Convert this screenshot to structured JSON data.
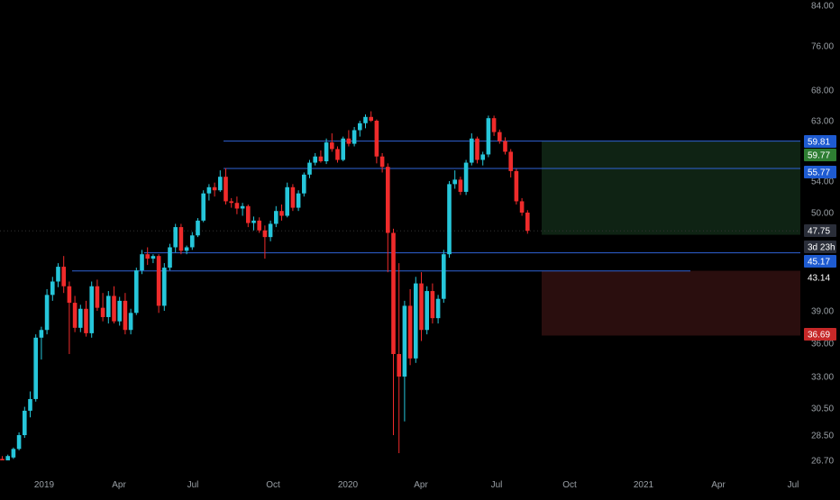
{
  "colors": {
    "background": "#000000",
    "up": "#26c6da",
    "down": "#ef2b2b",
    "hline": "#2f63d6",
    "target_zone": "#0f2314",
    "stop_zone": "#2a0e0e",
    "axis_text": "#9aa0a6",
    "badge_blue": "#1e5bd1",
    "badge_green": "#2e7d32",
    "badge_red": "#c62828",
    "badge_gray": "#2a2e39"
  },
  "price_axis": {
    "ticks": [
      "84.00",
      "76.00",
      "68.00",
      "63.00",
      "54.00",
      "50.00",
      "39.00",
      "36.00",
      "33.00",
      "30.50",
      "28.50",
      "26.70"
    ],
    "labels": [
      {
        "text": "59.81",
        "style": "blue"
      },
      {
        "text": "59.77",
        "style": "green"
      },
      {
        "text": "55.77",
        "style": "blue"
      },
      {
        "text": "47.75",
        "style": "gray"
      },
      {
        "text": "3d 23h",
        "style": "gray"
      },
      {
        "text": "45.17",
        "style": "blue"
      },
      {
        "text": "43.14",
        "style": "plain"
      },
      {
        "text": "36.69",
        "style": "red"
      }
    ]
  },
  "time_axis": {
    "ticks": [
      "2019",
      "Apr",
      "Jul",
      "Oct",
      "2020",
      "Apr",
      "Jul",
      "Oct",
      "2021",
      "Apr",
      "Jul"
    ]
  },
  "chart_data": {
    "type": "candlestick",
    "scale": "log",
    "ylim": [
      26.0,
      84.0
    ],
    "x_unit": "weeks",
    "horizontal_lines": [
      59.81,
      55.77,
      45.17,
      43.14
    ],
    "position": {
      "entry": 45.17,
      "target": 59.77,
      "stop": 36.69
    },
    "candles": [
      [
        26.8,
        27.0,
        26.5,
        26.6
      ],
      [
        26.6,
        27.1,
        26.5,
        27.0
      ],
      [
        26.9,
        27.6,
        26.8,
        27.5
      ],
      [
        27.5,
        28.7,
        27.4,
        28.5
      ],
      [
        28.5,
        30.6,
        28.3,
        30.3
      ],
      [
        30.3,
        31.8,
        29.8,
        31.2
      ],
      [
        31.2,
        36.8,
        31.0,
        36.5
      ],
      [
        36.5,
        37.5,
        34.5,
        37.2
      ],
      [
        37.2,
        41.2,
        36.8,
        40.6
      ],
      [
        40.6,
        42.5,
        40.0,
        42.0
      ],
      [
        42.0,
        44.0,
        41.4,
        43.6
      ],
      [
        43.6,
        44.8,
        40.8,
        41.5
      ],
      [
        41.5,
        42.0,
        35.0,
        39.8
      ],
      [
        39.8,
        40.5,
        37.0,
        37.4
      ],
      [
        37.4,
        39.6,
        37.0,
        39.2
      ],
      [
        39.2,
        40.0,
        36.6,
        36.9
      ],
      [
        36.9,
        42.0,
        36.5,
        41.5
      ],
      [
        41.5,
        42.2,
        39.0,
        39.3
      ],
      [
        39.3,
        40.8,
        38.0,
        38.4
      ],
      [
        38.4,
        41.0,
        37.8,
        40.5
      ],
      [
        40.5,
        41.5,
        37.8,
        38.0
      ],
      [
        38.0,
        40.4,
        37.6,
        40.0
      ],
      [
        40.0,
        40.8,
        36.8,
        37.2
      ],
      [
        37.2,
        39.2,
        36.8,
        38.8
      ],
      [
        38.8,
        43.5,
        38.6,
        43.2
      ],
      [
        43.2,
        45.5,
        42.8,
        45.0
      ],
      [
        45.0,
        45.8,
        43.8,
        44.5
      ],
      [
        44.5,
        45.0,
        44.0,
        44.8
      ],
      [
        44.8,
        45.0,
        38.8,
        39.5
      ],
      [
        39.5,
        44.0,
        39.0,
        43.5
      ],
      [
        43.5,
        46.2,
        43.2,
        45.8
      ],
      [
        45.8,
        48.6,
        45.2,
        48.2
      ],
      [
        48.2,
        48.6,
        45.0,
        45.4
      ],
      [
        45.4,
        46.0,
        45.0,
        45.8
      ],
      [
        45.8,
        47.6,
        45.5,
        47.2
      ],
      [
        47.2,
        49.3,
        47.0,
        49.0
      ],
      [
        49.0,
        52.8,
        48.8,
        52.4
      ],
      [
        52.4,
        53.6,
        51.5,
        53.2
      ],
      [
        53.2,
        53.8,
        52.0,
        52.8
      ],
      [
        52.8,
        55.5,
        52.6,
        54.6
      ],
      [
        54.6,
        55.8,
        51.0,
        51.4
      ],
      [
        51.4,
        51.8,
        50.6,
        51.2
      ],
      [
        51.2,
        52.0,
        49.8,
        50.5
      ],
      [
        50.5,
        51.2,
        49.6,
        50.8
      ],
      [
        50.8,
        51.0,
        48.2,
        48.7
      ],
      [
        48.7,
        49.5,
        47.8,
        49.0
      ],
      [
        49.0,
        49.4,
        47.5,
        47.8
      ],
      [
        47.8,
        48.4,
        44.5,
        47.0
      ],
      [
        47.0,
        49.0,
        46.5,
        48.6
      ],
      [
        48.6,
        50.8,
        48.2,
        50.2
      ],
      [
        50.2,
        51.0,
        49.0,
        49.6
      ],
      [
        49.6,
        53.8,
        49.4,
        53.2
      ],
      [
        53.2,
        53.6,
        50.2,
        50.6
      ],
      [
        50.6,
        52.8,
        50.2,
        52.4
      ],
      [
        52.4,
        55.2,
        52.0,
        54.9
      ],
      [
        54.9,
        57.0,
        54.4,
        56.6
      ],
      [
        56.6,
        58.0,
        56.2,
        57.5
      ],
      [
        57.5,
        58.4,
        56.6,
        56.8
      ],
      [
        56.8,
        60.2,
        56.4,
        59.6
      ],
      [
        59.6,
        61.0,
        58.2,
        58.6
      ],
      [
        58.6,
        59.0,
        56.6,
        57.0
      ],
      [
        57.0,
        60.5,
        56.8,
        60.2
      ],
      [
        60.2,
        61.5,
        59.0,
        59.4
      ],
      [
        59.4,
        62.0,
        59.0,
        61.5
      ],
      [
        61.5,
        63.0,
        60.5,
        62.6
      ],
      [
        62.6,
        64.0,
        61.8,
        63.6
      ],
      [
        63.6,
        64.5,
        62.8,
        63.0
      ],
      [
        63.0,
        63.2,
        56.5,
        57.5
      ],
      [
        57.5,
        58.0,
        55.2,
        56.0
      ],
      [
        56.0,
        56.5,
        43.0,
        47.5
      ],
      [
        47.5,
        48.0,
        28.5,
        35.0
      ],
      [
        35.0,
        44.0,
        27.2,
        33.0
      ],
      [
        33.0,
        40.0,
        29.5,
        39.5
      ],
      [
        39.5,
        41.2,
        34.0,
        34.6
      ],
      [
        34.6,
        42.5,
        34.2,
        41.8
      ],
      [
        41.8,
        43.0,
        36.2,
        37.2
      ],
      [
        37.2,
        41.5,
        36.8,
        41.0
      ],
      [
        41.0,
        41.8,
        37.8,
        38.3
      ],
      [
        38.3,
        40.6,
        37.8,
        40.2
      ],
      [
        40.2,
        45.5,
        39.8,
        45.0
      ],
      [
        45.0,
        54.0,
        44.6,
        53.6
      ],
      [
        53.6,
        55.5,
        53.0,
        54.2
      ],
      [
        54.2,
        54.6,
        52.2,
        52.6
      ],
      [
        52.6,
        57.0,
        52.2,
        56.6
      ],
      [
        56.6,
        61.0,
        56.2,
        60.2
      ],
      [
        60.2,
        60.5,
        56.5,
        57.0
      ],
      [
        57.0,
        58.2,
        56.2,
        57.8
      ],
      [
        57.8,
        63.8,
        57.4,
        63.4
      ],
      [
        63.4,
        63.8,
        60.6,
        61.2
      ],
      [
        61.2,
        61.6,
        59.4,
        59.8
      ],
      [
        59.8,
        60.4,
        57.8,
        58.2
      ],
      [
        58.2,
        58.6,
        54.5,
        55.4
      ],
      [
        55.4,
        55.7,
        51.0,
        51.4
      ],
      [
        51.4,
        51.8,
        49.6,
        50.0
      ],
      [
        50.0,
        50.3,
        47.4,
        47.75
      ]
    ]
  }
}
